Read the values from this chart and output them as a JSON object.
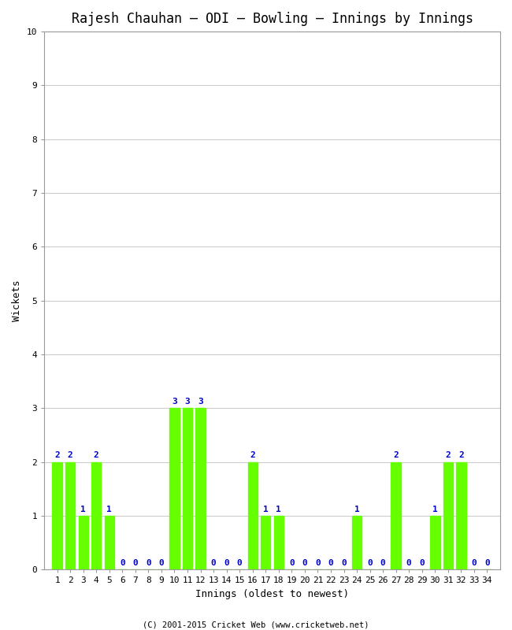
{
  "title": "Rajesh Chauhan – ODI – Bowling – Innings by Innings",
  "xlabel": "Innings (oldest to newest)",
  "ylabel": "Wickets",
  "footnote": "(C) 2001-2015 Cricket Web (www.cricketweb.net)",
  "innings": [
    1,
    2,
    3,
    4,
    5,
    6,
    7,
    8,
    9,
    10,
    11,
    12,
    13,
    14,
    15,
    16,
    17,
    18,
    19,
    20,
    21,
    22,
    23,
    24,
    25,
    26,
    27,
    28,
    29,
    30,
    31,
    32,
    33,
    34
  ],
  "wickets": [
    2,
    2,
    1,
    2,
    1,
    0,
    0,
    0,
    0,
    3,
    3,
    3,
    0,
    0,
    0,
    2,
    1,
    1,
    0,
    0,
    0,
    0,
    0,
    1,
    0,
    0,
    2,
    0,
    0,
    1,
    2,
    2,
    0,
    0
  ],
  "bar_color": "#66ff00",
  "label_color": "#0000cc",
  "background_color": "#ffffff",
  "plot_bg_color": "#ffffff",
  "ylim": [
    0,
    10
  ],
  "yticks": [
    0,
    1,
    2,
    3,
    4,
    5,
    6,
    7,
    8,
    9,
    10
  ],
  "title_fontsize": 12,
  "axis_fontsize": 9,
  "label_fontsize": 8,
  "tick_fontsize": 8
}
